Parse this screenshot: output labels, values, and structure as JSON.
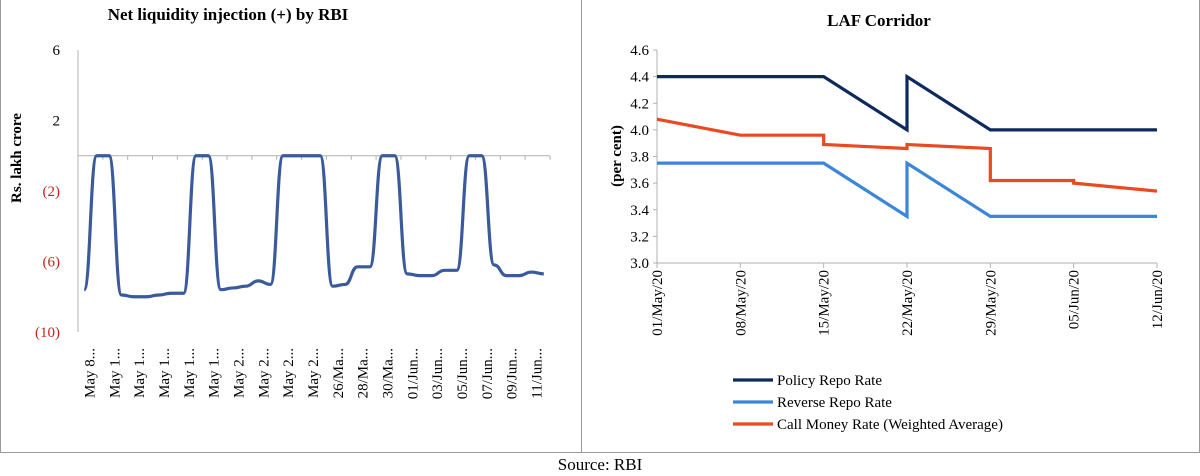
{
  "colors": {
    "liquidity_line": "#3a5a9c",
    "policy_repo": "#0e2a5c",
    "reverse_repo": "#3c86d8",
    "call_money": "#ea4a22",
    "negative_tick": "#c0261b",
    "axis": "#b0b0b0"
  },
  "source": "Source: RBI",
  "chart_data": [
    {
      "type": "line",
      "title": "Net liquidity injection (+) by RBI",
      "ylabel": "Rs. lakh crore",
      "xlabel": "",
      "ylim": [
        -10,
        6
      ],
      "y_ticks": [
        {
          "value": 6,
          "label": "6",
          "negative": false
        },
        {
          "value": 2,
          "label": "2",
          "negative": false
        },
        {
          "value": -2,
          "label": "(2)",
          "negative": true
        },
        {
          "value": -6,
          "label": "(6)",
          "negative": true
        },
        {
          "value": -10,
          "label": "(10)",
          "negative": true
        }
      ],
      "x_tick_labels": [
        "May 8...",
        "May 1...",
        "May 1...",
        "May 1...",
        "May 1...",
        "May 1...",
        "May 2...",
        "May 2...",
        "May 2...",
        "May 2...",
        "26/Ma...",
        "28/Ma...",
        "30/Ma...",
        "01/Jun...",
        "03/Jun...",
        "05/Jun...",
        "07/Jun...",
        "09/Jun...",
        "11/Jun..."
      ],
      "grid": false,
      "series": [
        {
          "name": "",
          "values": [
            -7.6,
            0.0,
            0.0,
            -7.9,
            -8.0,
            -8.0,
            -7.9,
            -7.8,
            -7.8,
            0.0,
            0.0,
            -7.6,
            -7.5,
            -7.4,
            -7.1,
            -7.3,
            0.0,
            0.0,
            0.0,
            0.0,
            -7.4,
            -7.3,
            -6.3,
            -6.3,
            0.0,
            0.0,
            -6.7,
            -6.8,
            -6.8,
            -6.5,
            -6.5,
            0.0,
            0.0,
            -6.2,
            -6.8,
            -6.8,
            -6.6,
            -6.7
          ]
        }
      ]
    },
    {
      "type": "line",
      "title": "LAF Corridor",
      "ylabel": "(per cent)",
      "xlabel": "",
      "ylim": [
        3.0,
        4.6
      ],
      "y_ticks": [
        "4.6",
        "4.4",
        "4.2",
        "4.0",
        "3.8",
        "3.6",
        "3.4",
        "3.2",
        "3.0"
      ],
      "x_tick_labels": [
        "01/May/20",
        "08/May/20",
        "15/May/20",
        "22/May/20",
        "29/May/20",
        "05/Jun/20",
        "12/Jun/20"
      ],
      "legend_position": "bottom",
      "grid": false,
      "series": [
        {
          "name": "Policy Repo Rate",
          "x": [
            "01/May/20",
            "15/May/20",
            "22/May/20",
            "22/May/20",
            "29/May/20",
            "12/Jun/20"
          ],
          "values": [
            4.4,
            4.4,
            4.0,
            4.4,
            4.0,
            4.0
          ]
        },
        {
          "name": "Reverse Repo Rate",
          "x": [
            "01/May/20",
            "15/May/20",
            "22/May/20",
            "22/May/20",
            "29/May/20",
            "12/Jun/20"
          ],
          "values": [
            3.75,
            3.75,
            3.35,
            3.75,
            3.35,
            3.35
          ]
        },
        {
          "name": "Call Money Rate (Weighted Average)",
          "x": [
            "01/May/20",
            "08/May/20",
            "08/May/20",
            "15/May/20",
            "15/May/20",
            "22/May/20",
            "22/May/20",
            "29/May/20",
            "29/May/20",
            "05/Jun/20",
            "05/Jun/20",
            "12/Jun/20"
          ],
          "values": [
            4.08,
            3.96,
            3.96,
            3.96,
            3.89,
            3.86,
            3.89,
            3.86,
            3.62,
            3.62,
            3.6,
            3.54
          ]
        }
      ]
    }
  ]
}
